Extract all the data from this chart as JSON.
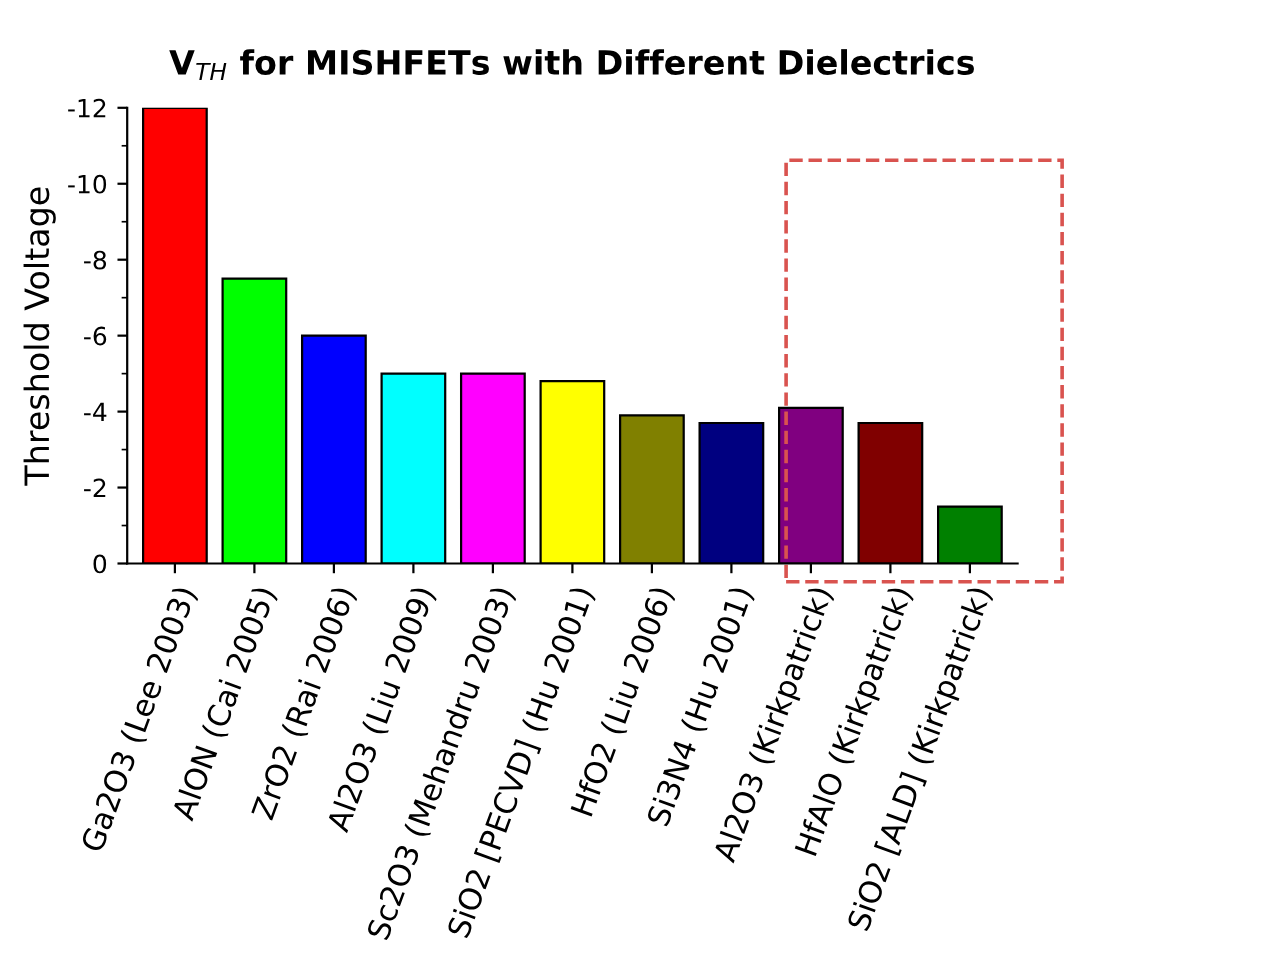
{
  "chart_data": {
    "type": "bar",
    "title": "V$_{TH}$ for MISHFETs with Different Dielectrics",
    "ylabel": "Threshold Voltage",
    "categories": [
      "Ga2O3 (Lee 2003)",
      "AlON (Cai 2005)",
      "ZrO2 (Rai 2006)",
      "Al2O3 (Liu 2009)",
      "Sc2O3 (Mehandru 2003)",
      "SiO2 [PECVD] (Hu 2001)",
      "HfO2 (Liu 2006)",
      "Si3N4 (Hu 2001)",
      "Al2O3 (Kirkpatrick)",
      "HfAlO (Kirkpatrick)",
      "SiO2 [ALD] (Kirkpatrick)"
    ],
    "values": [
      -12,
      -7.5,
      -6,
      -5,
      -5,
      -4.8,
      -3.9,
      -3.7,
      -4.1,
      -3.7,
      -1.5
    ],
    "colors": [
      "#ff0000",
      "#00ff00",
      "#0000ff",
      "#00ffff",
      "#ff00ff",
      "#ffff00",
      "#808000",
      "#000080",
      "#800080",
      "#800000",
      "#008000"
    ],
    "ylim": [
      0,
      -12
    ],
    "yticks": [
      0,
      -2,
      -4,
      -6,
      -8,
      -10,
      -12
    ],
    "grid": false
  }
}
